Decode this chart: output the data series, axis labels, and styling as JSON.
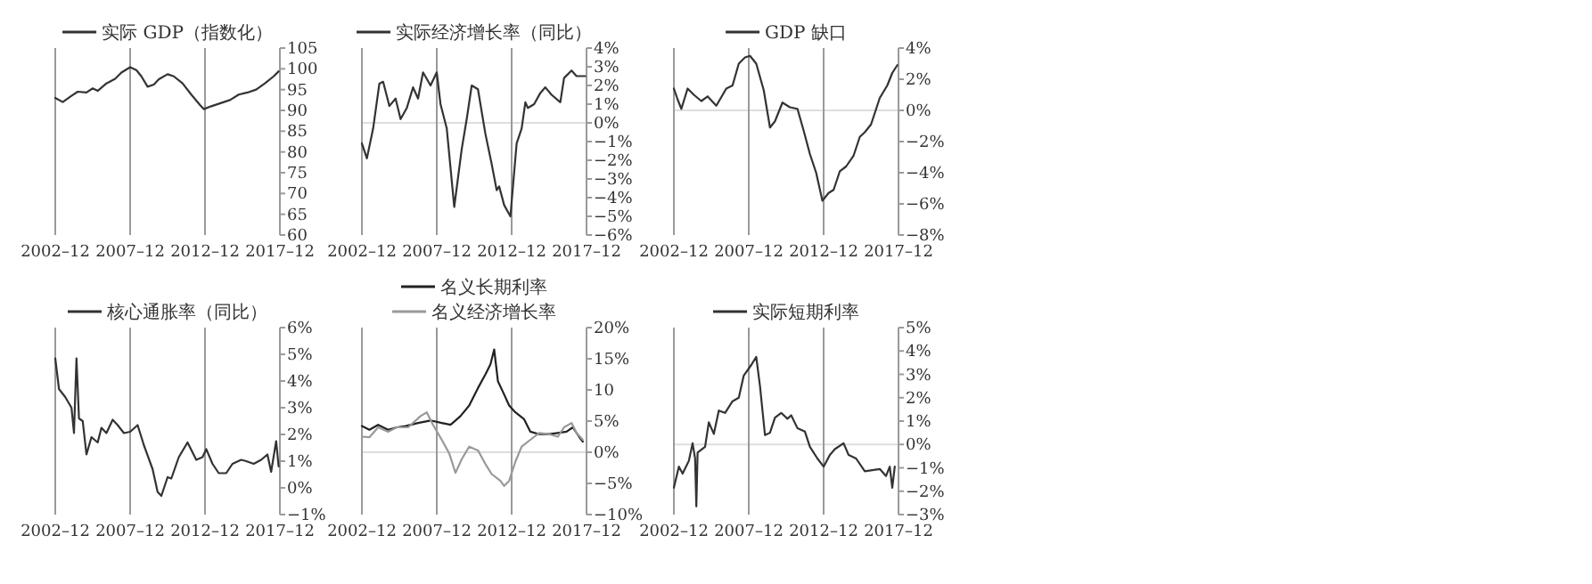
{
  "chart_data": [
    {
      "type": "line",
      "xlim": [
        "2002-12",
        "2017-12"
      ],
      "xticks": [
        {
          "value": "2002-12",
          "label": "2002–12"
        },
        {
          "value": "2007-12",
          "label": "2007–12"
        },
        {
          "value": "2012-12",
          "label": "2012–12"
        },
        {
          "value": "2017-12",
          "label": "2017–12"
        }
      ],
      "ylim": [
        60,
        105
      ],
      "yticks": [
        60,
        65,
        70,
        75,
        80,
        85,
        90,
        95,
        100,
        105
      ],
      "grid": "x",
      "legend": "top",
      "series": [
        {
          "name": "实际 GDP（指数化）",
          "color": "#333333",
          "x": [
            "2002-12",
            "2003-06",
            "2004-01",
            "2004-06",
            "2005-01",
            "2005-06",
            "2005-10",
            "2006-05",
            "2006-12",
            "2007-05",
            "2007-12",
            "2008-05",
            "2008-09",
            "2009-02",
            "2009-07",
            "2009-11",
            "2010-06",
            "2010-11",
            "2011-06",
            "2012-01",
            "2012-08",
            "2012-11",
            "2013-05",
            "2014-01",
            "2014-08",
            "2015-03",
            "2015-10",
            "2016-05",
            "2016-12",
            "2017-07",
            "2017-11"
          ],
          "values": [
            93.0,
            92,
            93.5,
            94.5,
            94.3,
            95.3,
            94.7,
            96.5,
            97.6,
            99.1,
            100.4,
            99.7,
            98.2,
            95.7,
            96.2,
            97.5,
            98.7,
            98.2,
            96.5,
            93.8,
            91.3,
            90.3,
            91,
            91.8,
            92.5,
            93.8,
            94.3,
            95,
            96.5,
            98.2,
            99.4
          ]
        }
      ]
    },
    {
      "type": "line",
      "xlim": [
        "2002-12",
        "2017-12"
      ],
      "xticks": [
        {
          "value": "2002-12",
          "label": "2002–12"
        },
        {
          "value": "2007-12",
          "label": "2007–12"
        },
        {
          "value": "2012-12",
          "label": "2012–12"
        },
        {
          "value": "2017-12",
          "label": "2017–12"
        }
      ],
      "ylim": [
        -6,
        4
      ],
      "yticks": [
        {
          "value": -6,
          "label": "−6%"
        },
        {
          "value": -5,
          "label": "−5%"
        },
        {
          "value": -4,
          "label": "−4%"
        },
        {
          "value": -3,
          "label": "−3%"
        },
        {
          "value": -2,
          "label": "−2%"
        },
        {
          "value": -1,
          "label": "−1%"
        },
        {
          "value": 0,
          "label": "0%"
        },
        {
          "value": 1,
          "label": "1%"
        },
        {
          "value": 2,
          "label": "2%"
        },
        {
          "value": 3,
          "label": "3%"
        },
        {
          "value": 4,
          "label": "4%"
        }
      ],
      "grid": "x",
      "legend": "top",
      "ref_lines": [
        {
          "axis": "y",
          "value": 0,
          "color": "#dddddd"
        }
      ],
      "series": [
        {
          "name": "实际经济增长率（同比）",
          "color": "#333333",
          "x": [
            "2002-12",
            "2003-04",
            "2003-09",
            "2004-02",
            "2004-05",
            "2004-10",
            "2005-03",
            "2005-07",
            "2005-12",
            "2006-05",
            "2006-09",
            "2007-01",
            "2007-07",
            "2007-12",
            "2008-03",
            "2008-08",
            "2009-02",
            "2009-08",
            "2009-12",
            "2010-04",
            "2010-09",
            "2011-03",
            "2011-08",
            "2011-12",
            "2012-02",
            "2012-06",
            "2012-11",
            "2013-04",
            "2013-08",
            "2013-11",
            "2014-01",
            "2014-06",
            "2014-11",
            "2015-03",
            "2015-08",
            "2016-03",
            "2016-06",
            "2016-12",
            "2017-04",
            "2017-11"
          ],
          "values": [
            -1.1,
            -1.9,
            -0.3,
            2.1,
            2.2,
            0.9,
            1.3,
            0.2,
            0.8,
            1.9,
            1.3,
            2.7,
            2.0,
            2.7,
            1.0,
            -0.3,
            -4.5,
            -1.4,
            0.2,
            2.0,
            1.8,
            -0.6,
            -2.2,
            -3.6,
            -3.4,
            -4.4,
            -5.0,
            -1.1,
            -0.3,
            1.1,
            0.8,
            1.0,
            1.6,
            1.9,
            1.5,
            1.1,
            2.4,
            2.8,
            2.5,
            2.5
          ]
        }
      ]
    },
    {
      "type": "line",
      "xlim": [
        "2002-12",
        "2017-12"
      ],
      "xticks": [
        {
          "value": "2002-12",
          "label": "2002–12"
        },
        {
          "value": "2007-12",
          "label": "2007–12"
        },
        {
          "value": "2012-12",
          "label": "2012–12"
        },
        {
          "value": "2017-12",
          "label": "2017–12"
        }
      ],
      "ylim": [
        -8,
        4
      ],
      "yticks": [
        {
          "value": -8,
          "label": "−8%"
        },
        {
          "value": -6,
          "label": "−6%"
        },
        {
          "value": -4,
          "label": "−4%"
        },
        {
          "value": -2,
          "label": "−2%"
        },
        {
          "value": 0,
          "label": "0%"
        },
        {
          "value": 2,
          "label": "2%"
        },
        {
          "value": 4,
          "label": "4%"
        }
      ],
      "grid": "x",
      "legend": "top",
      "ref_lines": [
        {
          "axis": "y",
          "value": 0,
          "color": "#dddddd"
        }
      ],
      "series": [
        {
          "name": "GDP 缺口",
          "color": "#333333",
          "x": [
            "2002-12",
            "2003-03",
            "2003-06",
            "2003-11",
            "2004-04",
            "2004-10",
            "2005-03",
            "2005-10",
            "2006-06",
            "2006-11",
            "2007-04",
            "2007-09",
            "2008-01",
            "2008-06",
            "2008-12",
            "2009-05",
            "2009-09",
            "2010-03",
            "2010-09",
            "2011-03",
            "2011-08",
            "2012-01",
            "2012-06",
            "2012-11",
            "2013-04",
            "2013-08",
            "2014-01",
            "2014-06",
            "2014-12",
            "2015-05",
            "2015-09",
            "2016-02",
            "2016-09",
            "2017-03",
            "2017-07",
            "2017-11"
          ],
          "values": [
            1.4,
            0.7,
            0.1,
            1.4,
            1.0,
            0.6,
            0.9,
            0.3,
            1.4,
            1.6,
            3.0,
            3.4,
            3.5,
            3.0,
            1.3,
            -1.1,
            -0.7,
            0.5,
            0.2,
            0.1,
            -1.3,
            -2.8,
            -4.0,
            -5.8,
            -5.3,
            -5.1,
            -3.9,
            -3.6,
            -2.9,
            -1.7,
            -1.4,
            -0.9,
            0.8,
            1.6,
            2.4,
            2.9
          ]
        }
      ]
    },
    {
      "type": "line",
      "xlim": [
        "2002-12",
        "2017-12"
      ],
      "xticks": [
        {
          "value": "2002-12",
          "label": "2002–12"
        },
        {
          "value": "2007-12",
          "label": "2007–12"
        },
        {
          "value": "2012-12",
          "label": "2012–12"
        },
        {
          "value": "2017-12",
          "label": "2017–12"
        }
      ],
      "ylim": [
        -1,
        6
      ],
      "yticks": [
        {
          "value": -1,
          "label": "−1%"
        },
        {
          "value": 0,
          "label": "0%"
        },
        {
          "value": 1,
          "label": "1%"
        },
        {
          "value": 2,
          "label": "2%"
        },
        {
          "value": 3,
          "label": "3%"
        },
        {
          "value": 4,
          "label": "4%"
        },
        {
          "value": 5,
          "label": "5%"
        },
        {
          "value": 6,
          "label": "6%"
        }
      ],
      "grid": "x",
      "legend": "top",
      "series": [
        {
          "name": "核心通胀率（同比）",
          "color": "#333333",
          "x": [
            "2002-12",
            "2003-03",
            "2003-08",
            "2004-01",
            "2004-03",
            "2004-05",
            "2004-07",
            "2004-10",
            "2005-01",
            "2005-05",
            "2005-10",
            "2006-01",
            "2006-05",
            "2006-10",
            "2007-02",
            "2007-07",
            "2007-12",
            "2008-06",
            "2008-11",
            "2009-06",
            "2009-10",
            "2010-01",
            "2010-06",
            "2010-09",
            "2011-03",
            "2011-10",
            "2012-05",
            "2012-10",
            "2013-01",
            "2013-06",
            "2013-11",
            "2014-05",
            "2014-10",
            "2015-05",
            "2015-09",
            "2016-03",
            "2016-09",
            "2017-02",
            "2017-05",
            "2017-09",
            "2017-11"
          ],
          "values": [
            4.85,
            3.7,
            3.4,
            3.0,
            2.05,
            4.85,
            2.6,
            2.5,
            1.25,
            1.9,
            1.7,
            2.25,
            2.05,
            2.55,
            2.35,
            2.05,
            2.1,
            2.35,
            1.6,
            0.7,
            -0.15,
            -0.3,
            0.4,
            0.35,
            1.15,
            1.7,
            1.05,
            1.15,
            1.45,
            0.9,
            0.55,
            0.55,
            0.9,
            1.05,
            1.0,
            0.9,
            1.05,
            1.25,
            0.6,
            1.75,
            0.8
          ]
        }
      ]
    },
    {
      "type": "line",
      "xlim": [
        "2002-12",
        "2017-12"
      ],
      "xticks": [
        {
          "value": "2002-12",
          "label": "2002–12"
        },
        {
          "value": "2007-12",
          "label": "2007–12"
        },
        {
          "value": "2012-12",
          "label": "2012–12"
        },
        {
          "value": "2017-12",
          "label": "2017–12"
        }
      ],
      "ylim": [
        -10,
        20
      ],
      "yticks": [
        {
          "value": -10,
          "label": "−10%"
        },
        {
          "value": -5,
          "label": "−5%"
        },
        {
          "value": 0,
          "label": "0%"
        },
        {
          "value": 5,
          "label": "5%"
        },
        {
          "value": 10,
          "label": "10"
        },
        {
          "value": 15,
          "label": "15%"
        },
        {
          "value": 20,
          "label": "20%"
        }
      ],
      "grid": "x",
      "legend": "top",
      "ref_lines": [
        {
          "axis": "y",
          "value": 0,
          "color": "#dddddd"
        }
      ],
      "series": [
        {
          "name": "名义长期利率",
          "color": "#222222",
          "x": [
            "2002-12",
            "2003-06",
            "2004-01",
            "2004-09",
            "2005-04",
            "2005-11",
            "2006-09",
            "2007-07",
            "2008-04",
            "2008-11",
            "2009-07",
            "2010-02",
            "2010-09",
            "2011-03",
            "2011-07",
            "2011-10",
            "2012-01",
            "2012-05",
            "2012-10",
            "2013-03",
            "2013-10",
            "2014-03",
            "2014-10",
            "2015-06",
            "2016-01",
            "2016-08",
            "2017-01",
            "2017-06",
            "2017-09"
          ],
          "values": [
            4.2,
            3.6,
            4.4,
            3.6,
            4.0,
            4.2,
            4.7,
            5.1,
            4.7,
            4.4,
            5.8,
            7.5,
            10.3,
            12.5,
            14.1,
            16.5,
            11.4,
            9.7,
            7.5,
            6.4,
            5.3,
            3.3,
            2.9,
            2.9,
            3.1,
            3.3,
            4.0,
            2.5,
            1.7
          ]
        },
        {
          "name": "名义经济增长率",
          "color": "#999999",
          "x": [
            "2002-12",
            "2003-06",
            "2004-01",
            "2004-09",
            "2005-04",
            "2006-01",
            "2006-11",
            "2007-04",
            "2007-09",
            "2008-04",
            "2008-10",
            "2009-03",
            "2009-08",
            "2010-02",
            "2010-09",
            "2011-03",
            "2011-08",
            "2012-03",
            "2012-06",
            "2012-10",
            "2013-03",
            "2013-08",
            "2014-03",
            "2014-10",
            "2015-06",
            "2016-01",
            "2016-06",
            "2016-12",
            "2017-04",
            "2017-09"
          ],
          "values": [
            2.5,
            2.4,
            4.0,
            3.3,
            4.0,
            4.0,
            5.8,
            6.4,
            4.4,
            2.0,
            -0.2,
            -3.3,
            -1.1,
            0.9,
            0.3,
            -1.9,
            -3.5,
            -4.6,
            -5.4,
            -4.6,
            -1.5,
            0.9,
            2.0,
            3.1,
            2.9,
            2.5,
            4.0,
            4.7,
            3.1,
            2.0
          ]
        }
      ]
    },
    {
      "type": "line",
      "xlim": [
        "2002-12",
        "2017-12"
      ],
      "xticks": [
        {
          "value": "2002-12",
          "label": "2002–12"
        },
        {
          "value": "2007-12",
          "label": "2007–12"
        },
        {
          "value": "2012-12",
          "label": "2012–12"
        },
        {
          "value": "2017-12",
          "label": "2017–12"
        }
      ],
      "ylim": [
        -3,
        5
      ],
      "yticks": [
        {
          "value": -3,
          "label": "−3%"
        },
        {
          "value": -2,
          "label": "−2%"
        },
        {
          "value": -1,
          "label": "−1%"
        },
        {
          "value": 0,
          "label": "0%"
        },
        {
          "value": 1,
          "label": "1%"
        },
        {
          "value": 2,
          "label": "2%"
        },
        {
          "value": 3,
          "label": "3%"
        },
        {
          "value": 4,
          "label": "4%"
        },
        {
          "value": 5,
          "label": "5%"
        }
      ],
      "grid": "x",
      "legend": "top",
      "ref_lines": [
        {
          "axis": "y",
          "value": 0,
          "color": "#dddddd"
        }
      ],
      "series": [
        {
          "name": "实际短期利率",
          "color": "#333333",
          "x": [
            "2002-12",
            "2003-04",
            "2003-07",
            "2003-12",
            "2004-03",
            "2004-05",
            "2004-06",
            "2004-07",
            "2005-01",
            "2005-04",
            "2005-08",
            "2005-12",
            "2006-05",
            "2006-11",
            "2007-04",
            "2007-08",
            "2008-02",
            "2008-06",
            "2008-09",
            "2009-01",
            "2009-05",
            "2009-09",
            "2010-02",
            "2010-07",
            "2010-10",
            "2011-03",
            "2011-09",
            "2012-01",
            "2012-07",
            "2012-12",
            "2013-05",
            "2013-09",
            "2014-04",
            "2014-08",
            "2015-02",
            "2015-09",
            "2016-03",
            "2016-09",
            "2017-02",
            "2017-05",
            "2017-07",
            "2017-09"
          ],
          "values": [
            -1.85,
            -0.95,
            -1.25,
            -0.7,
            0.05,
            -0.6,
            -2.65,
            -0.35,
            -0.1,
            0.95,
            0.45,
            1.45,
            1.35,
            1.85,
            2.0,
            2.95,
            3.4,
            3.75,
            2.5,
            0.4,
            0.5,
            1.15,
            1.35,
            1.1,
            1.25,
            0.7,
            0.55,
            -0.1,
            -0.6,
            -0.95,
            -0.45,
            -0.2,
            0.05,
            -0.45,
            -0.6,
            -1.15,
            -1.1,
            -1.05,
            -1.35,
            -0.95,
            -1.85,
            -0.95
          ]
        }
      ]
    }
  ]
}
